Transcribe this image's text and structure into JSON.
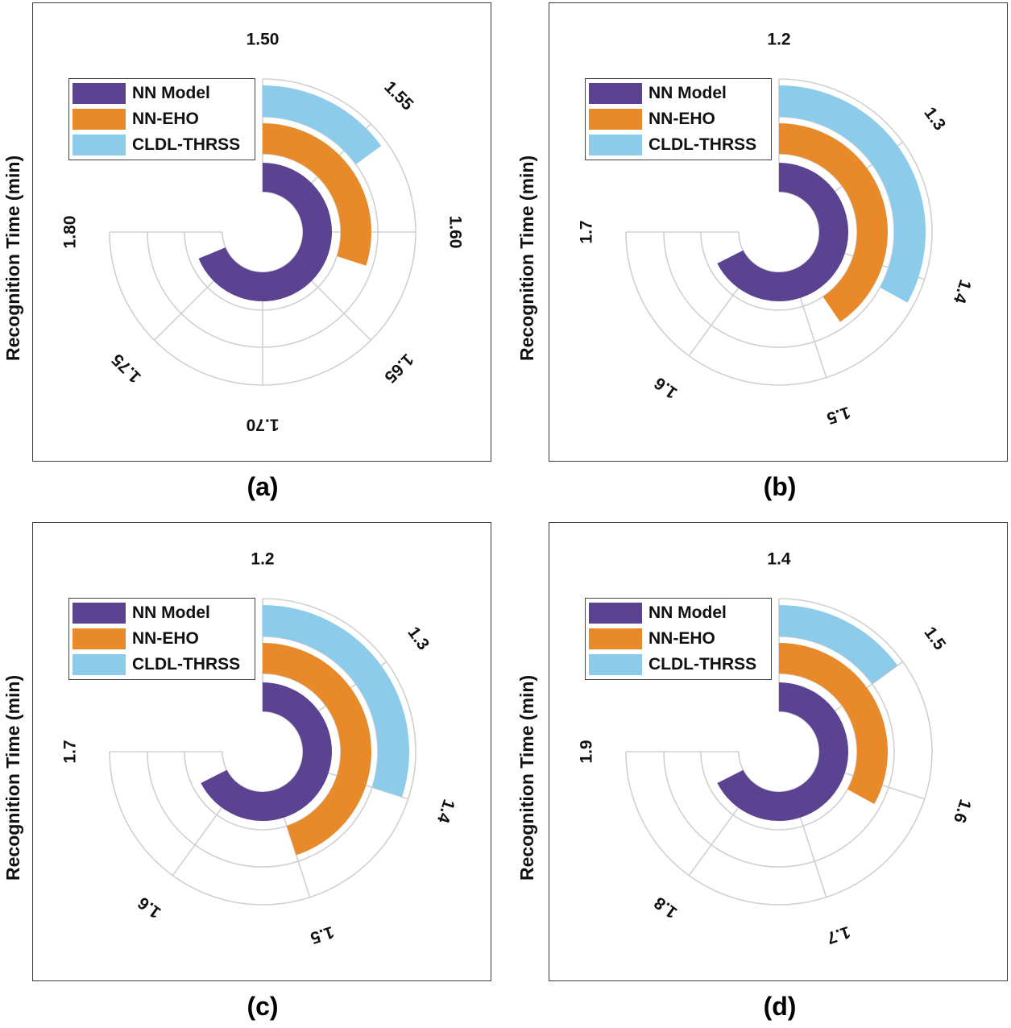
{
  "colors": {
    "nn_model": "#5b4392",
    "nn_eho": "#e8892a",
    "cldl_thrss": "#8ccbea",
    "grid": "#d0d0d0"
  },
  "legend": [
    "NN Model",
    "NN-EHO",
    "CLDL-THRSS"
  ],
  "ylabel": "Recognition Time (min)",
  "chart_data": [
    {
      "type": "radial-bar",
      "caption": "(a)",
      "ylabel": "Recognition Time (min)",
      "theta_ticks": [
        1.5,
        1.55,
        1.6,
        1.65,
        1.7,
        1.75,
        1.8
      ],
      "theta_tick_labels": [
        "1.50",
        "1.55",
        "1.60",
        "1.65",
        "1.70",
        "1.75",
        "1.80"
      ],
      "theta_range": [
        1.5,
        1.8
      ],
      "series": [
        {
          "name": "NN Model",
          "value": 1.775
        },
        {
          "name": "NN-EHO",
          "value": 1.62
        },
        {
          "name": "CLDL-THRSS",
          "value": 1.56
        }
      ]
    },
    {
      "type": "radial-bar",
      "caption": "(b)",
      "ylabel": "Recognition Time (min)",
      "theta_ticks": [
        1.2,
        1.3,
        1.4,
        1.5,
        1.6,
        1.7
      ],
      "theta_tick_labels": [
        "1.2",
        "1.3",
        "1.4",
        "1.5",
        "1.6",
        "1.7"
      ],
      "theta_range": [
        1.2,
        1.7
      ],
      "series": [
        {
          "name": "NN Model",
          "value": 1.65
        },
        {
          "name": "NN-EHO",
          "value": 1.47
        },
        {
          "name": "CLDL-THRSS",
          "value": 1.42
        }
      ]
    },
    {
      "type": "radial-bar",
      "caption": "(c)",
      "ylabel": "Recognition Time (min)",
      "theta_ticks": [
        1.2,
        1.3,
        1.4,
        1.5,
        1.6,
        1.7
      ],
      "theta_tick_labels": [
        "1.2",
        "1.3",
        "1.4",
        "1.5",
        "1.6",
        "1.7"
      ],
      "theta_range": [
        1.2,
        1.7
      ],
      "series": [
        {
          "name": "NN Model",
          "value": 1.65
        },
        {
          "name": "NN-EHO",
          "value": 1.5
        },
        {
          "name": "CLDL-THRSS",
          "value": 1.4
        }
      ]
    },
    {
      "type": "radial-bar",
      "caption": "(d)",
      "ylabel": "Recognition Time (min)",
      "theta_ticks": [
        1.4,
        1.5,
        1.6,
        1.7,
        1.8,
        1.9
      ],
      "theta_tick_labels": [
        "1.4",
        "1.5",
        "1.6",
        "1.7",
        "1.8",
        "1.9"
      ],
      "theta_range": [
        1.4,
        1.9
      ],
      "series": [
        {
          "name": "NN Model",
          "value": 1.85
        },
        {
          "name": "NN-EHO",
          "value": 1.62
        },
        {
          "name": "CLDL-THRSS",
          "value": 1.5
        }
      ]
    }
  ]
}
